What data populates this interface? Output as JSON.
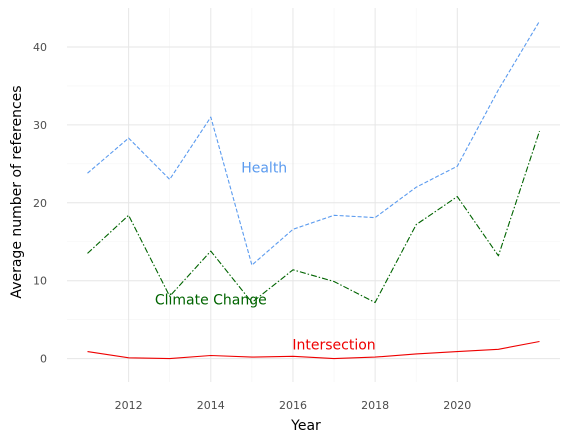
{
  "chart_data": {
    "type": "line",
    "title": "",
    "xlabel": "Year",
    "ylabel": "Average number of references",
    "xlim": [
      2010.5,
      2022.5
    ],
    "ylim": [
      -3,
      45
    ],
    "x_ticks": [
      2012,
      2014,
      2016,
      2018,
      2020
    ],
    "y_ticks": [
      0,
      10,
      20,
      30,
      40
    ],
    "x_tick_labels": [
      "2012",
      "2014",
      "2016",
      "2018",
      "2020"
    ],
    "y_tick_labels": [
      "0",
      "10",
      "20",
      "30",
      "40"
    ],
    "grid": true,
    "legend": "none (labels placed directly on the plot)",
    "x": [
      2011,
      2012,
      2013,
      2014,
      2015,
      2016,
      2017,
      2018,
      2019,
      2020,
      2021,
      2022
    ],
    "series": [
      {
        "name": "Health",
        "color": "#5b9bef",
        "dash": "dashed",
        "values": [
          23.8,
          28.3,
          23.0,
          31.0,
          12.0,
          16.6,
          18.4,
          18.1,
          22.0,
          24.7,
          34.5,
          43.3
        ],
        "label_at": [
          2015.3,
          24.5
        ]
      },
      {
        "name": "Climate Change",
        "color": "#006400",
        "dash": "dashdot",
        "values": [
          13.5,
          18.4,
          8.0,
          13.8,
          7.2,
          11.4,
          9.9,
          7.2,
          17.2,
          20.8,
          13.2,
          29.2
        ],
        "label_at": [
          2014.0,
          7.6
        ]
      },
      {
        "name": "Intersection",
        "color": "#ee0000",
        "dash": "solid",
        "values": [
          0.9,
          0.1,
          0.0,
          0.4,
          0.2,
          0.3,
          0.0,
          0.2,
          0.6,
          0.9,
          1.2,
          2.2
        ],
        "label_at": [
          2017.0,
          1.8
        ]
      }
    ]
  }
}
